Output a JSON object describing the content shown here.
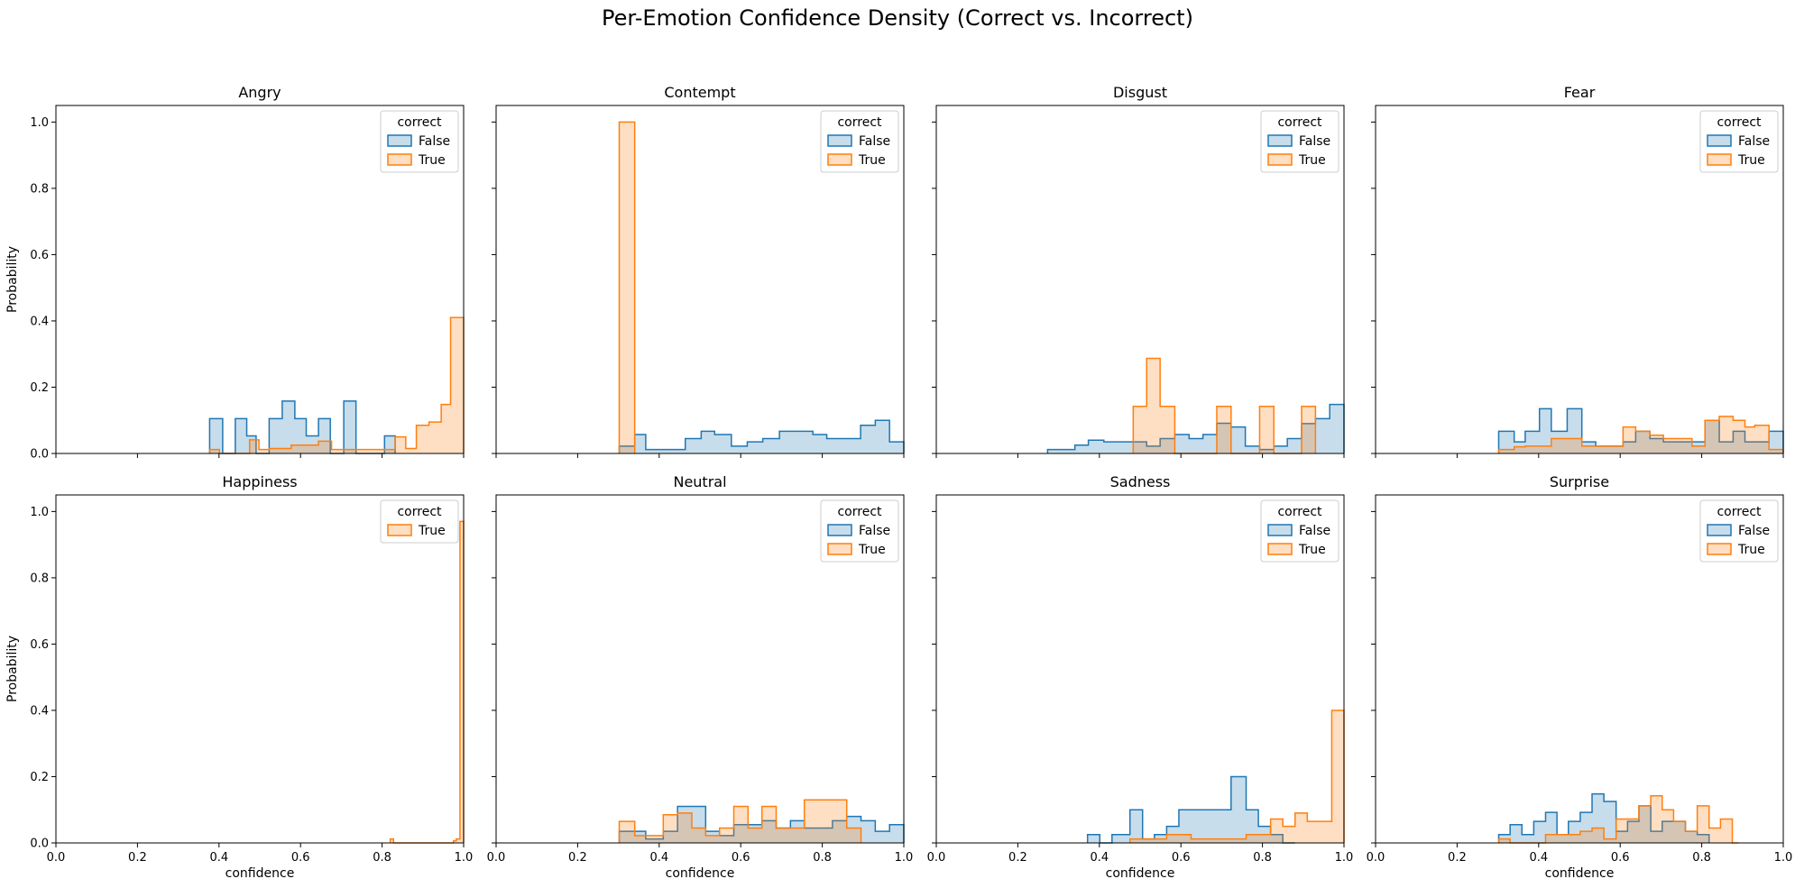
{
  "figure": {
    "title": "Per-Emotion Confidence Density (Correct vs. Incorrect)"
  },
  "colors": {
    "False": "#1f77b4",
    "True": "#ff7f0e"
  },
  "legend_title": "correct",
  "chart_data": [
    {
      "type": "histogram-step",
      "title": "Angry",
      "xlabel": "",
      "ylabel": "Probability",
      "xlim": [
        0,
        1
      ],
      "ylim": [
        0,
        1.05
      ],
      "xticks": [
        "0.0",
        "0.2",
        "0.4",
        "0.6",
        "0.8",
        "1.0"
      ],
      "yticks": [
        "0.0",
        "0.2",
        "0.4",
        "0.6",
        "0.8",
        "1.0"
      ],
      "show_xticklabels": false,
      "show_yticklabels": true,
      "legend_position": "top-right",
      "series": [
        {
          "name": "False",
          "x": [
            0.377,
            0.409,
            0.44,
            0.468,
            0.491,
            0.523,
            0.555,
            0.586,
            0.614,
            0.644,
            0.673,
            0.706,
            0.736,
            0.764,
            0.806,
            0.832
          ],
          "y": [
            0.105,
            0,
            0.105,
            0.053,
            0,
            0.105,
            0.158,
            0.105,
            0.053,
            0.105,
            0,
            0.158,
            0,
            0,
            0.053,
            0
          ]
        },
        {
          "name": "True",
          "x": [
            0.377,
            0.401,
            0.475,
            0.498,
            0.523,
            0.577,
            0.613,
            0.644,
            0.676,
            0.764,
            0.806,
            0.832,
            0.858,
            0.884,
            0.915,
            0.945,
            0.968,
            1.0
          ],
          "y": [
            0.012,
            0,
            0.041,
            0.012,
            0.015,
            0.025,
            0.025,
            0.037,
            0.012,
            0.012,
            0.012,
            0.05,
            0.015,
            0.085,
            0.095,
            0.148,
            0.41,
            0
          ]
        }
      ]
    },
    {
      "type": "histogram-step",
      "title": "Contempt",
      "xlabel": "",
      "ylabel": "",
      "xlim": [
        0,
        1
      ],
      "ylim": [
        0,
        1.05
      ],
      "xticks": [
        "0.0",
        "0.2",
        "0.4",
        "0.6",
        "0.8",
        "1.0"
      ],
      "yticks": [
        "0.0",
        "0.2",
        "0.4",
        "0.6",
        "0.8",
        "1.0"
      ],
      "show_xticklabels": false,
      "show_yticklabels": false,
      "legend_position": "top-right",
      "series": [
        {
          "name": "False",
          "x": [
            0.302,
            0.34,
            0.367,
            0.41,
            0.464,
            0.503,
            0.536,
            0.577,
            0.616,
            0.654,
            0.695,
            0.733,
            0.777,
            0.811,
            0.849,
            0.894,
            0.93,
            0.965,
            1.0
          ],
          "y": [
            0.022,
            0.057,
            0.012,
            0.012,
            0.045,
            0.067,
            0.057,
            0.022,
            0.035,
            0.045,
            0.067,
            0.067,
            0.057,
            0.045,
            0.045,
            0.085,
            0.1,
            0.035,
            0.105
          ]
        },
        {
          "name": "True",
          "x": [
            0.302,
            0.34
          ],
          "y": [
            1.0,
            0
          ]
        }
      ]
    },
    {
      "type": "histogram-step",
      "title": "Disgust",
      "xlabel": "",
      "ylabel": "",
      "xlim": [
        0,
        1
      ],
      "ylim": [
        0,
        1.05
      ],
      "xticks": [
        "0.0",
        "0.2",
        "0.4",
        "0.6",
        "0.8",
        "1.0"
      ],
      "yticks": [
        "0.0",
        "0.2",
        "0.4",
        "0.6",
        "0.8",
        "1.0"
      ],
      "show_xticklabels": false,
      "show_yticklabels": false,
      "legend_position": "top-right",
      "series": [
        {
          "name": "False",
          "x": [
            0.273,
            0.34,
            0.373,
            0.411,
            0.448,
            0.483,
            0.516,
            0.549,
            0.585,
            0.62,
            0.654,
            0.688,
            0.723,
            0.758,
            0.793,
            0.828,
            0.861,
            0.896,
            0.93,
            0.965,
            1.0
          ],
          "y": [
            0.012,
            0.025,
            0.04,
            0.035,
            0.035,
            0.035,
            0.022,
            0.045,
            0.057,
            0.045,
            0.057,
            0.091,
            0.08,
            0.022,
            0.012,
            0.022,
            0.045,
            0.09,
            0.105,
            0.148,
            0
          ]
        },
        {
          "name": "True",
          "x": [
            0.483,
            0.516,
            0.549,
            0.585,
            0.62,
            0.688,
            0.723,
            0.793,
            0.828,
            0.896,
            0.93
          ],
          "y": [
            0.142,
            0.287,
            0.142,
            0,
            0,
            0.142,
            0,
            0.142,
            0,
            0.142,
            0
          ]
        }
      ]
    },
    {
      "type": "histogram-step",
      "title": "Fear",
      "xlabel": "",
      "ylabel": "",
      "xlim": [
        0,
        1
      ],
      "ylim": [
        0,
        1.05
      ],
      "xticks": [
        "0.0",
        "0.2",
        "0.4",
        "0.6",
        "0.8",
        "1.0"
      ],
      "yticks": [
        "0.0",
        "0.2",
        "0.4",
        "0.6",
        "0.8",
        "1.0"
      ],
      "show_xticklabels": false,
      "show_yticklabels": false,
      "legend_position": "top-right",
      "series": [
        {
          "name": "False",
          "x": [
            0.302,
            0.34,
            0.367,
            0.402,
            0.431,
            0.47,
            0.506,
            0.54,
            0.576,
            0.607,
            0.638,
            0.673,
            0.706,
            0.742,
            0.776,
            0.808,
            0.843,
            0.877,
            0.906,
            0.965,
            1.0
          ],
          "y": [
            0.067,
            0.035,
            0.067,
            0.135,
            0.067,
            0.135,
            0.035,
            0.022,
            0.022,
            0.035,
            0.067,
            0.045,
            0.035,
            0.035,
            0.035,
            0.1,
            0.035,
            0.067,
            0.035,
            0.067,
            0
          ]
        },
        {
          "name": "True",
          "x": [
            0.302,
            0.34,
            0.367,
            0.402,
            0.431,
            0.47,
            0.506,
            0.54,
            0.576,
            0.607,
            0.638,
            0.673,
            0.706,
            0.742,
            0.776,
            0.808,
            0.843,
            0.877,
            0.906,
            0.93,
            0.965,
            1.0
          ],
          "y": [
            0.012,
            0.02,
            0.022,
            0.022,
            0.045,
            0.045,
            0.022,
            0.022,
            0.022,
            0.08,
            0.067,
            0.055,
            0.045,
            0.045,
            0.022,
            0.1,
            0.112,
            0.1,
            0.08,
            0.085,
            0.012,
            0
          ]
        }
      ]
    },
    {
      "type": "histogram-step",
      "title": "Happiness",
      "xlabel": "confidence",
      "ylabel": "Probability",
      "xlim": [
        0,
        1
      ],
      "ylim": [
        0,
        1.05
      ],
      "xticks": [
        "0.0",
        "0.2",
        "0.4",
        "0.6",
        "0.8",
        "1.0"
      ],
      "yticks": [
        "0.0",
        "0.2",
        "0.4",
        "0.6",
        "0.8",
        "1.0"
      ],
      "show_xticklabels": true,
      "show_yticklabels": true,
      "legend_position": "top-right",
      "series": [
        {
          "name": "True",
          "x": [
            0.82,
            0.828,
            0.975,
            0.982,
            0.991,
            1.0
          ],
          "y": [
            0.012,
            0,
            0.006,
            0.012,
            0.97,
            0
          ]
        }
      ]
    },
    {
      "type": "histogram-step",
      "title": "Neutral",
      "xlabel": "confidence",
      "ylabel": "",
      "xlim": [
        0,
        1
      ],
      "ylim": [
        0,
        1.05
      ],
      "xticks": [
        "0.0",
        "0.2",
        "0.4",
        "0.6",
        "0.8",
        "1.0"
      ],
      "yticks": [
        "0.0",
        "0.2",
        "0.4",
        "0.6",
        "0.8",
        "1.0"
      ],
      "show_xticklabels": true,
      "show_yticklabels": false,
      "legend_position": "top-right",
      "series": [
        {
          "name": "False",
          "x": [
            0.302,
            0.34,
            0.367,
            0.41,
            0.445,
            0.48,
            0.514,
            0.548,
            0.583,
            0.618,
            0.652,
            0.687,
            0.722,
            0.756,
            0.79,
            0.825,
            0.86,
            0.895,
            0.93,
            0.965,
            1.0
          ],
          "y": [
            0.035,
            0.035,
            0.012,
            0.035,
            0.11,
            0.11,
            0.035,
            0.022,
            0.055,
            0.055,
            0.067,
            0.045,
            0.067,
            0.045,
            0.045,
            0.067,
            0.08,
            0.067,
            0.035,
            0.055,
            0
          ]
        },
        {
          "name": "True",
          "x": [
            0.302,
            0.34,
            0.41,
            0.445,
            0.48,
            0.514,
            0.548,
            0.583,
            0.618,
            0.652,
            0.687,
            0.722,
            0.756,
            0.79,
            0.86,
            0.895
          ],
          "y": [
            0.065,
            0.022,
            0.085,
            0.09,
            0.045,
            0.022,
            0.045,
            0.11,
            0.045,
            0.11,
            0.045,
            0.045,
            0.13,
            0.13,
            0.045,
            0
          ]
        }
      ]
    },
    {
      "type": "histogram-step",
      "title": "Sadness",
      "xlabel": "confidence",
      "ylabel": "",
      "xlim": [
        0,
        1
      ],
      "ylim": [
        0,
        1.05
      ],
      "xticks": [
        "0.0",
        "0.2",
        "0.4",
        "0.6",
        "0.8",
        "1.0"
      ],
      "yticks": [
        "0.0",
        "0.2",
        "0.4",
        "0.6",
        "0.8",
        "1.0"
      ],
      "show_xticklabels": true,
      "show_yticklabels": false,
      "legend_position": "top-right",
      "series": [
        {
          "name": "False",
          "x": [
            0.371,
            0.401,
            0.431,
            0.475,
            0.506,
            0.535,
            0.565,
            0.595,
            0.625,
            0.723,
            0.76,
            0.79,
            0.82,
            0.85,
            0.88
          ],
          "y": [
            0.025,
            0,
            0.025,
            0.1,
            0.012,
            0.025,
            0.05,
            0.1,
            0.1,
            0.2,
            0.1,
            0.05,
            0.025,
            0,
            0
          ]
        },
        {
          "name": "True",
          "x": [
            0.475,
            0.506,
            0.565,
            0.595,
            0.625,
            0.723,
            0.76,
            0.79,
            0.82,
            0.85,
            0.88,
            0.91,
            0.94,
            0.97,
            1.0
          ],
          "y": [
            0.012,
            0.012,
            0.025,
            0.025,
            0.012,
            0.012,
            0.025,
            0.025,
            0.072,
            0.05,
            0.09,
            0.065,
            0.065,
            0.4,
            0
          ]
        }
      ]
    },
    {
      "type": "histogram-step",
      "title": "Surprise",
      "xlabel": "confidence",
      "ylabel": "",
      "xlim": [
        0,
        1
      ],
      "ylim": [
        0,
        1.05
      ],
      "xticks": [
        "0.0",
        "0.2",
        "0.4",
        "0.6",
        "0.8",
        "1.0"
      ],
      "yticks": [
        "0.0",
        "0.2",
        "0.4",
        "0.6",
        "0.8",
        "1.0"
      ],
      "show_xticklabels": true,
      "show_yticklabels": false,
      "legend_position": "top-right",
      "series": [
        {
          "name": "False",
          "x": [
            0.302,
            0.33,
            0.359,
            0.388,
            0.417,
            0.445,
            0.473,
            0.502,
            0.531,
            0.56,
            0.59,
            0.618,
            0.646,
            0.675,
            0.703,
            0.731,
            0.76,
            0.789,
            0.818
          ],
          "y": [
            0.025,
            0.055,
            0.025,
            0.065,
            0.092,
            0.025,
            0.065,
            0.092,
            0.148,
            0.125,
            0.035,
            0.065,
            0.112,
            0.035,
            0.065,
            0.065,
            0.035,
            0.025,
            0
          ]
        },
        {
          "name": "True",
          "x": [
            0.302,
            0.33,
            0.359,
            0.388,
            0.417,
            0.445,
            0.473,
            0.502,
            0.531,
            0.56,
            0.59,
            0.618,
            0.646,
            0.675,
            0.703,
            0.731,
            0.76,
            0.789,
            0.818,
            0.846,
            0.875,
            0.89
          ],
          "y": [
            0.012,
            0,
            0,
            0,
            0.025,
            0.025,
            0.025,
            0.035,
            0.045,
            0.012,
            0.072,
            0.072,
            0.112,
            0.142,
            0.1,
            0.065,
            0.035,
            0.112,
            0.045,
            0.072,
            0,
            0
          ]
        }
      ]
    }
  ]
}
